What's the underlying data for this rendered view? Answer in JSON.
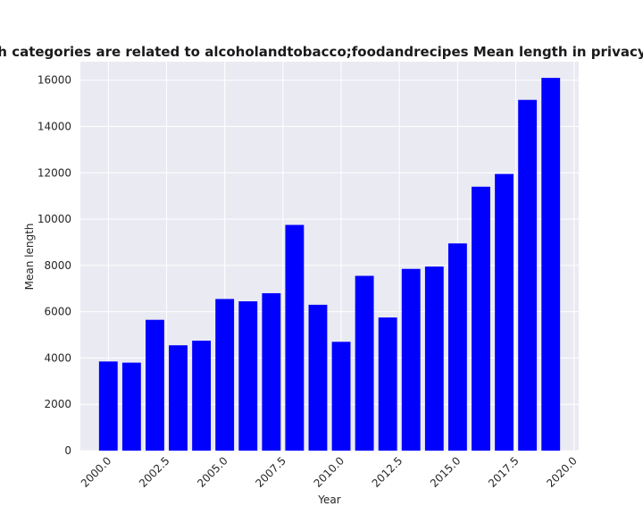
{
  "chart_data": {
    "type": "bar",
    "title": "Websites which categories are related to alcoholandtobacco;foodandrecipes Mean length in privacy policies by year",
    "xlabel": "Year",
    "ylabel": "Mean length",
    "x": [
      2000,
      2001,
      2002,
      2003,
      2004,
      2005,
      2006,
      2007,
      2008,
      2009,
      2010,
      2011,
      2012,
      2013,
      2014,
      2015,
      2016,
      2017,
      2018,
      2019
    ],
    "values": [
      3850,
      3800,
      5650,
      4550,
      4750,
      6550,
      6450,
      6800,
      9750,
      6300,
      4700,
      7550,
      5750,
      7850,
      7950,
      8950,
      11400,
      11950,
      15150,
      16100
    ],
    "xlim": [
      1998.8,
      2020.2
    ],
    "ylim": [
      0,
      16800
    ],
    "xticks": [
      "2000.0",
      "2002.5",
      "2005.0",
      "2007.5",
      "2010.0",
      "2012.5",
      "2015.0",
      "2017.5",
      "2020.0"
    ],
    "yticks": [
      "0",
      "2000",
      "4000",
      "6000",
      "8000",
      "10000",
      "12000",
      "14000",
      "16000"
    ],
    "bar_color": "#0000ff",
    "plot_background": "#eaeaf2",
    "grid": true,
    "legend": "none"
  }
}
